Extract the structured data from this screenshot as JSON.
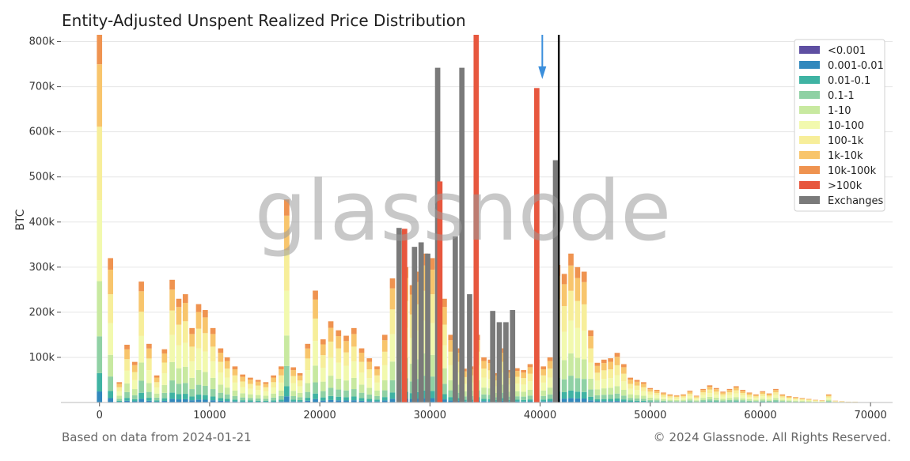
{
  "title": "Entity-Adjusted Unspent Realized Price Distribution",
  "footer": {
    "source_note": "Based on data from 2024-01-21",
    "copyright": "© 2024 Glassnode. All Rights Reserved."
  },
  "watermark": "glassnode",
  "colors": {
    "<0.001": "#5e4fa2",
    "0.001-0.01": "#3288bd",
    "0.01-0.1": "#3fb3a3",
    "0.1-1": "#8fd1a4",
    "1-10": "#c8e9a0",
    "10-100": "#f2f9ae",
    "100-1k": "#f7ee9a",
    "1k-10k": "#f8c56c",
    "10k-100k": "#ef9350",
    ">100k": "#e7573e",
    "Exchanges": "#7a7a7a",
    "current_price_line": "#111111",
    "arrow": "#3b8fdc",
    "grid": "#e6e6e6"
  },
  "chart_data": {
    "type": "bar",
    "stacked": true,
    "xlabel": "",
    "ylabel": "BTC",
    "xlim": [
      -3500,
      72000
    ],
    "ylim": [
      0,
      815000
    ],
    "x_ticks": [
      0,
      10000,
      20000,
      30000,
      40000,
      50000,
      60000,
      70000
    ],
    "x_tick_labels": [
      "0",
      "10000",
      "20000",
      "30000",
      "40000",
      "50000",
      "60000",
      "70000"
    ],
    "y_ticks": [
      100000,
      200000,
      300000,
      400000,
      500000,
      600000,
      700000,
      800000
    ],
    "y_tick_labels": [
      "100k",
      "200k",
      "300k",
      "400k",
      "500k",
      "600k",
      "700k",
      "800k"
    ],
    "grid": true,
    "legend_position": "top-right",
    "legend": [
      "<0.001",
      "0.001-0.01",
      "0.01-0.1",
      "0.1-1",
      "1-10",
      "10-100",
      "100-1k",
      "1k-10k",
      "10k-100k",
      ">100k",
      "Exchanges"
    ],
    "current_price": 41700,
    "arrow_at": 40200,
    "bin_width": 500,
    "bars": [
      {
        "x": 0,
        "total": 815000
      },
      {
        "x": 1000,
        "total": 320000
      },
      {
        "x": 1800,
        "total": 45000
      },
      {
        "x": 2500,
        "total": 128000
      },
      {
        "x": 3200,
        "total": 90000
      },
      {
        "x": 3800,
        "total": 268000
      },
      {
        "x": 4500,
        "total": 130000
      },
      {
        "x": 5200,
        "total": 60000
      },
      {
        "x": 5900,
        "total": 118000
      },
      {
        "x": 6600,
        "total": 272000
      },
      {
        "x": 7200,
        "total": 230000
      },
      {
        "x": 7800,
        "total": 240000
      },
      {
        "x": 8400,
        "total": 165000
      },
      {
        "x": 9000,
        "total": 218000
      },
      {
        "x": 9600,
        "total": 205000
      },
      {
        "x": 10300,
        "total": 165000
      },
      {
        "x": 11000,
        "total": 120000
      },
      {
        "x": 11600,
        "total": 100000
      },
      {
        "x": 12300,
        "total": 80000
      },
      {
        "x": 13000,
        "total": 62000
      },
      {
        "x": 13700,
        "total": 55000
      },
      {
        "x": 14400,
        "total": 50000
      },
      {
        "x": 15100,
        "total": 45000
      },
      {
        "x": 15800,
        "total": 60000
      },
      {
        "x": 16500,
        "total": 80000
      },
      {
        "x": 17000,
        "total": 450000
      },
      {
        "x": 17600,
        "total": 78000
      },
      {
        "x": 18200,
        "total": 65000
      },
      {
        "x": 18900,
        "total": 130000
      },
      {
        "x": 19600,
        "total": 248000
      },
      {
        "x": 20300,
        "total": 140000
      },
      {
        "x": 21000,
        "total": 180000
      },
      {
        "x": 21700,
        "total": 160000
      },
      {
        "x": 22400,
        "total": 148000
      },
      {
        "x": 23100,
        "total": 165000
      },
      {
        "x": 23800,
        "total": 120000
      },
      {
        "x": 24500,
        "total": 98000
      },
      {
        "x": 25200,
        "total": 80000
      },
      {
        "x": 25900,
        "total": 150000
      },
      {
        "x": 26600,
        "total": 275000
      },
      {
        "x": 27200,
        "total": 380000
      },
      {
        "x": 27800,
        "total": 300000
      },
      {
        "x": 28400,
        "total": 260000
      },
      {
        "x": 29000,
        "total": 290000
      },
      {
        "x": 29600,
        "total": 330000
      },
      {
        "x": 30200,
        "total": 320000
      },
      {
        "x": 30800,
        "total": 300000
      },
      {
        "x": 31300,
        "total": 230000
      },
      {
        "x": 31900,
        "total": 150000
      },
      {
        "x": 32500,
        "total": 120000
      },
      {
        "x": 33100,
        "total": 75000
      },
      {
        "x": 33700,
        "total": 80000
      },
      {
        "x": 34300,
        "total": 150000
      },
      {
        "x": 34900,
        "total": 100000
      },
      {
        "x": 35500,
        "total": 95000
      },
      {
        "x": 36100,
        "total": 65000
      },
      {
        "x": 36700,
        "total": 120000
      },
      {
        "x": 37300,
        "total": 72000
      },
      {
        "x": 37900,
        "total": 76000
      },
      {
        "x": 38500,
        "total": 72000
      },
      {
        "x": 39100,
        "total": 85000
      },
      {
        "x": 39700,
        "total": 95000
      },
      {
        "x": 40300,
        "total": 80000
      },
      {
        "x": 40900,
        "total": 100000
      },
      {
        "x": 41600,
        "total": 305000
      },
      {
        "x": 42200,
        "total": 285000
      },
      {
        "x": 42800,
        "total": 330000
      },
      {
        "x": 43400,
        "total": 300000
      },
      {
        "x": 44000,
        "total": 290000
      },
      {
        "x": 44600,
        "total": 160000
      },
      {
        "x": 45200,
        "total": 88000
      },
      {
        "x": 45800,
        "total": 95000
      },
      {
        "x": 46400,
        "total": 98000
      },
      {
        "x": 47000,
        "total": 110000
      },
      {
        "x": 47600,
        "total": 85000
      },
      {
        "x": 48200,
        "total": 55000
      },
      {
        "x": 48800,
        "total": 50000
      },
      {
        "x": 49400,
        "total": 45000
      },
      {
        "x": 50000,
        "total": 32000
      },
      {
        "x": 50600,
        "total": 28000
      },
      {
        "x": 51200,
        "total": 22000
      },
      {
        "x": 51800,
        "total": 18000
      },
      {
        "x": 52400,
        "total": 16000
      },
      {
        "x": 53000,
        "total": 18000
      },
      {
        "x": 53600,
        "total": 26000
      },
      {
        "x": 54200,
        "total": 15000
      },
      {
        "x": 54800,
        "total": 30000
      },
      {
        "x": 55400,
        "total": 38000
      },
      {
        "x": 56000,
        "total": 32000
      },
      {
        "x": 56600,
        "total": 24000
      },
      {
        "x": 57200,
        "total": 30000
      },
      {
        "x": 57800,
        "total": 36000
      },
      {
        "x": 58400,
        "total": 28000
      },
      {
        "x": 59000,
        "total": 22000
      },
      {
        "x": 59600,
        "total": 18000
      },
      {
        "x": 60200,
        "total": 25000
      },
      {
        "x": 60800,
        "total": 20000
      },
      {
        "x": 61400,
        "total": 30000
      },
      {
        "x": 62000,
        "total": 18000
      },
      {
        "x": 62600,
        "total": 14000
      },
      {
        "x": 63200,
        "total": 12000
      },
      {
        "x": 63800,
        "total": 10000
      },
      {
        "x": 64400,
        "total": 8000
      },
      {
        "x": 65000,
        "total": 6000
      },
      {
        "x": 65600,
        "total": 5000
      },
      {
        "x": 66200,
        "total": 18000
      },
      {
        "x": 66800,
        "total": 4000
      },
      {
        "x": 67400,
        "total": 3000
      },
      {
        "x": 68000,
        "total": 2000
      },
      {
        "x": 68600,
        "total": 2000
      },
      {
        "x": 69200,
        "total": 1000
      }
    ],
    "series": [
      {
        "name": "Exchanges",
        "points": [
          [
            27200,
            387000
          ],
          [
            28600,
            345000
          ],
          [
            29200,
            355000
          ],
          [
            29800,
            330000
          ],
          [
            30700,
            742000
          ],
          [
            32300,
            368000
          ],
          [
            32900,
            742000
          ],
          [
            33600,
            240000
          ],
          [
            35700,
            203000
          ],
          [
            36300,
            178000
          ],
          [
            36900,
            178000
          ],
          [
            37500,
            205000
          ],
          [
            41400,
            537000
          ]
        ]
      },
      {
        "name": ">100k",
        "points": [
          [
            27700,
            385000
          ],
          [
            30900,
            490000
          ],
          [
            34200,
            815000
          ],
          [
            39700,
            697000
          ]
        ]
      }
    ]
  }
}
